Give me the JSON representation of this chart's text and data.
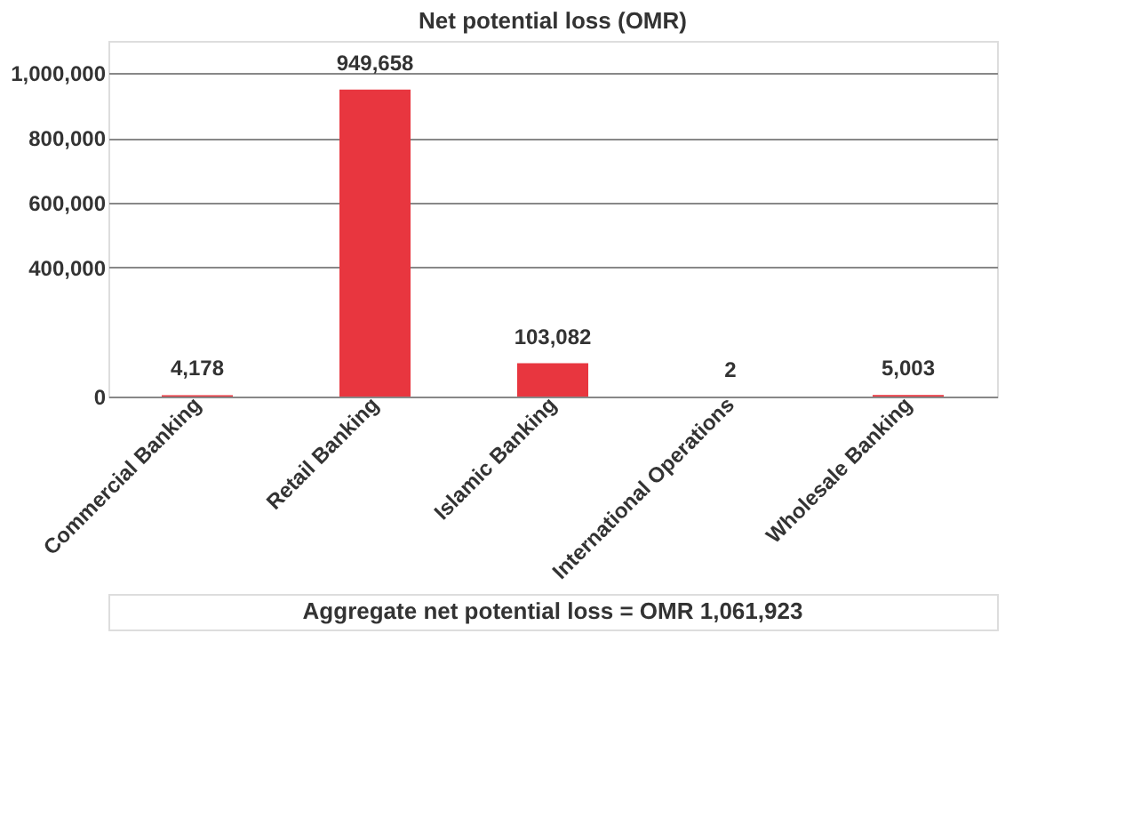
{
  "chart_data": {
    "type": "bar",
    "title": "Net potential loss (OMR)",
    "categories": [
      "Commercial Banking",
      "Retail Banking",
      "Islamic Banking",
      "International Operations",
      "Wholesale Banking"
    ],
    "values": [
      4178,
      949658,
      103082,
      2,
      5003
    ],
    "color": "#e8363f",
    "ylim": [
      0,
      1100000
    ],
    "yticks": [
      0,
      {
        "value": 400000,
        "label": "400,000"
      },
      {
        "value": 600000,
        "label": "600,000"
      },
      {
        "value": 800000,
        "label": "800,000"
      },
      {
        "value": 1000000,
        "label": "1,000,000"
      }
    ],
    "grid": "y",
    "value_labels": [
      "4,178",
      "949,658",
      "103,082",
      "2",
      "5,003"
    ],
    "annotations": [
      "Aggregate net potential loss = OMR 1,061,923"
    ]
  }
}
